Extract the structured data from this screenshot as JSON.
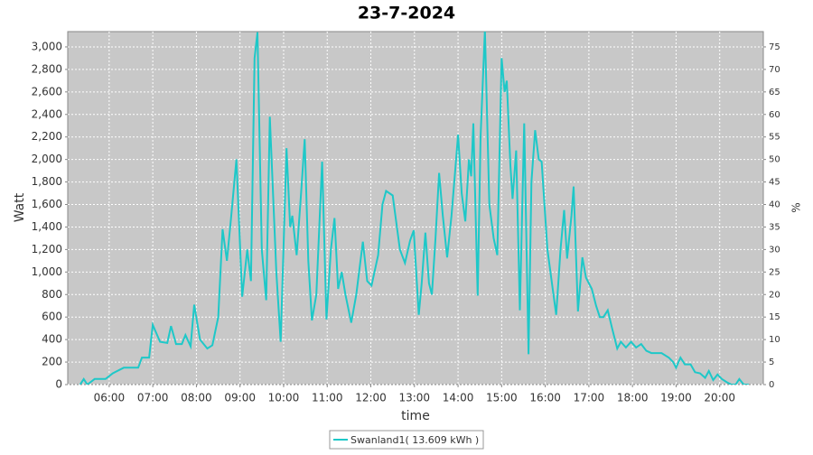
{
  "chart_data": {
    "type": "line",
    "title": "23-7-2024",
    "x_label": "time",
    "y_label": "Watt",
    "y2_label": "%",
    "x": [
      "05:20",
      "05:25",
      "05:30",
      "05:40",
      "05:55",
      "06:05",
      "06:20",
      "06:40",
      "06:45",
      "06:55",
      "07:00",
      "07:10",
      "07:20",
      "07:25",
      "07:32",
      "07:40",
      "07:45",
      "07:52",
      "07:57",
      "08:05",
      "08:15",
      "08:22",
      "08:30",
      "08:36",
      "08:42",
      "08:48",
      "08:55",
      "09:03",
      "09:10",
      "09:15",
      "09:20",
      "09:24",
      "09:30",
      "09:36",
      "09:41",
      "09:50",
      "09:56",
      "10:04",
      "10:09",
      "10:12",
      "10:18",
      "10:24",
      "10:29",
      "10:34",
      "10:39",
      "10:45",
      "10:53",
      "10:59",
      "11:05",
      "11:10",
      "11:15",
      "11:20",
      "11:25",
      "11:33",
      "11:40",
      "11:49",
      "11:55",
      "12:01",
      "12:10",
      "12:16",
      "12:21",
      "12:30",
      "12:40",
      "12:47",
      "12:54",
      "12:59",
      "13:06",
      "13:10",
      "13:15",
      "13:20",
      "13:24",
      "13:29",
      "13:34",
      "13:39",
      "13:45",
      "13:51",
      "13:56",
      "14:00",
      "14:05",
      "14:10",
      "14:15",
      "14:18",
      "14:21",
      "14:27",
      "14:31",
      "14:37",
      "14:43",
      "14:49",
      "14:54",
      "15:00",
      "15:04",
      "15:07",
      "15:12",
      "15:15",
      "15:20",
      "15:25",
      "15:31",
      "15:37",
      "15:41",
      "15:46",
      "15:51",
      "15:55",
      "16:03",
      "16:15",
      "16:21",
      "16:26",
      "16:30",
      "16:36",
      "16:39",
      "16:45",
      "16:51",
      "16:56",
      "17:04",
      "17:10",
      "17:15",
      "17:20",
      "17:26",
      "17:32",
      "17:39",
      "17:44",
      "17:51",
      "17:58",
      "18:05",
      "18:12",
      "18:19",
      "18:26",
      "18:40",
      "18:50",
      "18:56",
      "19:00",
      "19:06",
      "19:12",
      "19:20",
      "19:26",
      "19:33",
      "19:40",
      "19:45",
      "19:51",
      "19:57",
      "20:03",
      "20:10",
      "20:16",
      "20:22",
      "20:27",
      "20:33",
      "20:40"
    ],
    "series": [
      {
        "name": "Swanland1( 13.609 kWh )",
        "color": "#1ec8c8",
        "values": [
          0,
          50,
          0,
          50,
          50,
          100,
          150,
          150,
          240,
          240,
          530,
          380,
          370,
          520,
          360,
          360,
          440,
          340,
          710,
          400,
          320,
          350,
          600,
          1380,
          1100,
          1500,
          2000,
          780,
          1200,
          920,
          2900,
          3130,
          1200,
          750,
          2380,
          1000,
          380,
          2100,
          1400,
          1500,
          1150,
          1700,
          2180,
          1100,
          570,
          800,
          1980,
          580,
          1200,
          1480,
          850,
          1000,
          800,
          550,
          800,
          1270,
          920,
          880,
          1150,
          1600,
          1720,
          1680,
          1200,
          1080,
          1280,
          1370,
          620,
          900,
          1350,
          900,
          800,
          1300,
          1880,
          1500,
          1130,
          1500,
          1900,
          2220,
          1700,
          1450,
          2000,
          1850,
          2320,
          790,
          2200,
          3150,
          1600,
          1300,
          1150,
          2900,
          2600,
          2700,
          1950,
          1650,
          2080,
          660,
          2320,
          270,
          1800,
          2260,
          2000,
          1980,
          1200,
          620,
          1200,
          1550,
          1120,
          1500,
          1760,
          650,
          1130,
          950,
          850,
          700,
          600,
          600,
          660,
          500,
          320,
          380,
          330,
          380,
          330,
          360,
          300,
          280,
          280,
          240,
          200,
          150,
          240,
          180,
          180,
          110,
          100,
          60,
          120,
          40,
          90,
          50,
          20,
          0,
          0,
          50,
          0,
          0
        ]
      }
    ],
    "xlim": [
      "05:03",
      "21:00"
    ],
    "xticks": [
      "06:00",
      "07:00",
      "08:00",
      "09:00",
      "10:00",
      "11:00",
      "12:00",
      "13:00",
      "14:00",
      "15:00",
      "16:00",
      "17:00",
      "18:00",
      "19:00",
      "20:00"
    ],
    "ylim": [
      0,
      3136
    ],
    "yticks": [
      0,
      200,
      400,
      600,
      800,
      {
        "value": 1000,
        "label": "1,000"
      },
      {
        "value": 1200,
        "label": "1,200"
      },
      {
        "value": 1400,
        "label": "1,400"
      },
      {
        "value": 1600,
        "label": "1,600"
      },
      {
        "value": 1800,
        "label": "1,800"
      },
      {
        "value": 2000,
        "label": "2,000"
      },
      {
        "value": 2200,
        "label": "2,200"
      },
      {
        "value": 2400,
        "label": "2,400"
      },
      {
        "value": 2600,
        "label": "2,600"
      },
      {
        "value": 2800,
        "label": "2,800"
      },
      {
        "value": 3000,
        "label": "3,000"
      }
    ],
    "y2lim": [
      0,
      78.4
    ],
    "y2ticks": [
      0,
      5,
      10,
      15,
      20,
      25,
      30,
      35,
      40,
      45,
      50,
      55,
      60,
      65,
      70,
      75
    ],
    "grid": true
  }
}
